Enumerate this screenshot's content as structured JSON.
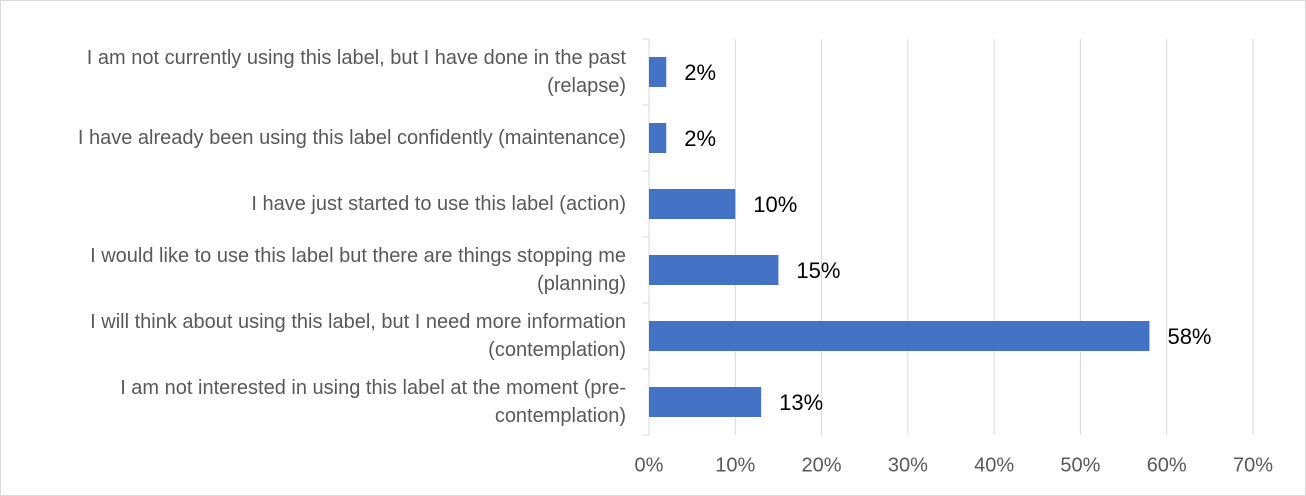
{
  "chart_data": {
    "type": "bar",
    "orientation": "horizontal",
    "categories": [
      "I am not currently using this label, but I have done in the past (relapse)",
      "I have already been using this label confidently (maintenance)",
      "I have just started to use this label (action)",
      "I would like to use this label but there are things stopping me (planning)",
      "I will think about using this label, but I need more information (contemplation)",
      "I am not interested in using this label at the moment (pre-contemplation)"
    ],
    "values": [
      2,
      2,
      10,
      15,
      58,
      13
    ],
    "value_labels": [
      "2%",
      "2%",
      "10%",
      "15%",
      "58%",
      "13%"
    ],
    "color": "#4472c4",
    "xlim": [
      0,
      70
    ],
    "xticks": [
      {
        "value": 0,
        "label": "0%"
      },
      {
        "value": 10,
        "label": "10%"
      },
      {
        "value": 20,
        "label": "20%"
      },
      {
        "value": 30,
        "label": "30%"
      },
      {
        "value": 40,
        "label": "40%"
      },
      {
        "value": 50,
        "label": "50%"
      },
      {
        "value": 60,
        "label": "60%"
      },
      {
        "value": 70,
        "label": "70%"
      }
    ],
    "grid": true
  }
}
